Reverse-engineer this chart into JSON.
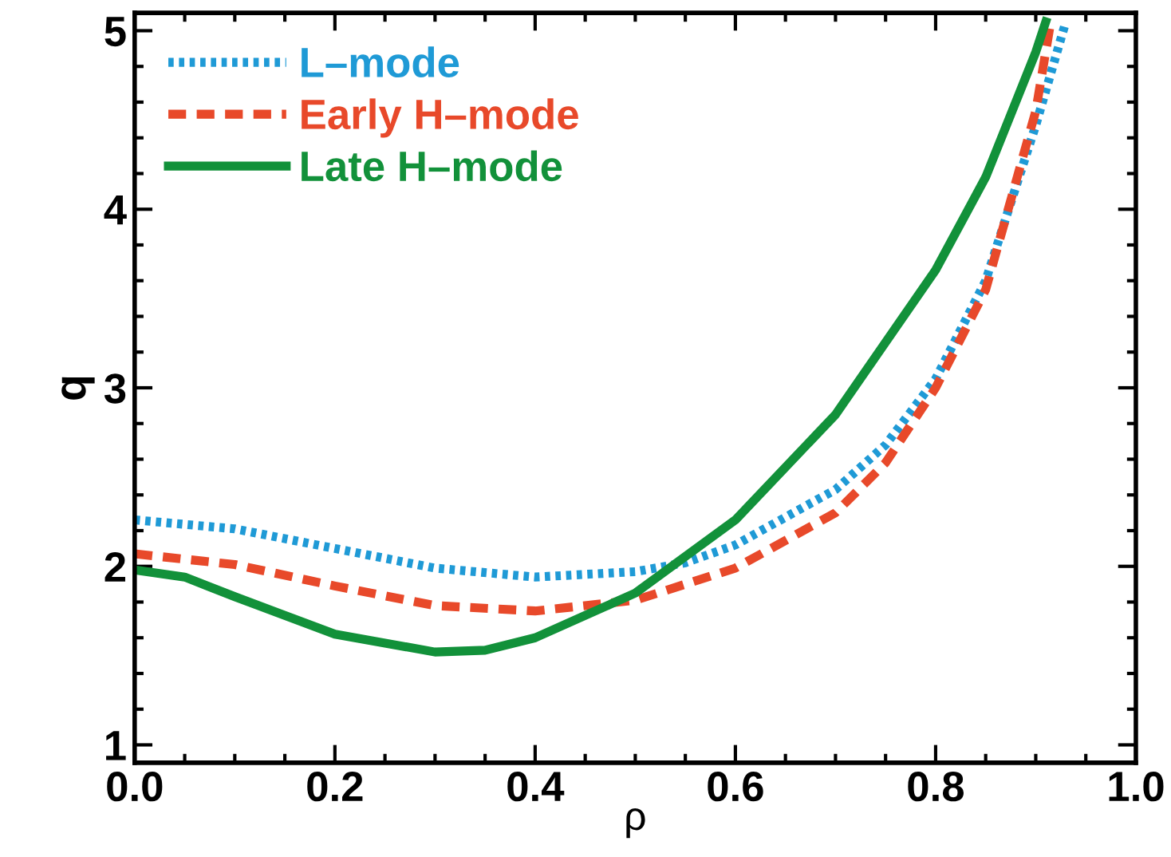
{
  "chart_data": {
    "type": "line",
    "xlabel": "ρ",
    "ylabel": "q",
    "xlim": [
      0,
      1
    ],
    "ylim": [
      0.9,
      5.1
    ],
    "xticks": [
      {
        "value": 0,
        "label": "0.0"
      },
      {
        "value": 0.2,
        "label": "0.2"
      },
      {
        "value": 0.4,
        "label": "0.4"
      },
      {
        "value": 0.6,
        "label": "0.6"
      },
      {
        "value": 0.8,
        "label": "0.8"
      },
      {
        "value": 1,
        "label": "1.0"
      }
    ],
    "yticks": [
      1,
      2,
      3,
      4,
      5
    ],
    "grid": false,
    "legend": "top left",
    "series": [
      {
        "name": "L–mode",
        "color": "#1f9ad6",
        "line_style": "dotted",
        "x": [
          0,
          0.1,
          0.2,
          0.3,
          0.4,
          0.5,
          0.55,
          0.6,
          0.7,
          0.75,
          0.8,
          0.85,
          0.9,
          0.93
        ],
        "values": [
          2.26,
          2.21,
          2.1,
          1.99,
          1.94,
          1.97,
          2.02,
          2.12,
          2.43,
          2.68,
          3.05,
          3.6,
          4.47,
          5.05
        ]
      },
      {
        "name": "Early H–mode",
        "color": "#e8492a",
        "line_style": "dashed",
        "x": [
          0,
          0.1,
          0.2,
          0.3,
          0.4,
          0.5,
          0.6,
          0.7,
          0.75,
          0.8,
          0.85,
          0.9,
          0.915
        ],
        "values": [
          2.07,
          2.01,
          1.89,
          1.78,
          1.75,
          1.81,
          1.99,
          2.3,
          2.58,
          3.0,
          3.55,
          4.55,
          5.05
        ]
      },
      {
        "name": "Late H–mode",
        "color": "#12913a",
        "line_style": "solid",
        "x": [
          0,
          0.05,
          0.1,
          0.2,
          0.3,
          0.35,
          0.4,
          0.5,
          0.6,
          0.7,
          0.8,
          0.85,
          0.9,
          0.91
        ],
        "values": [
          1.98,
          1.94,
          1.83,
          1.62,
          1.52,
          1.53,
          1.6,
          1.85,
          2.26,
          2.85,
          3.66,
          4.18,
          4.88,
          5.05
        ]
      }
    ]
  }
}
